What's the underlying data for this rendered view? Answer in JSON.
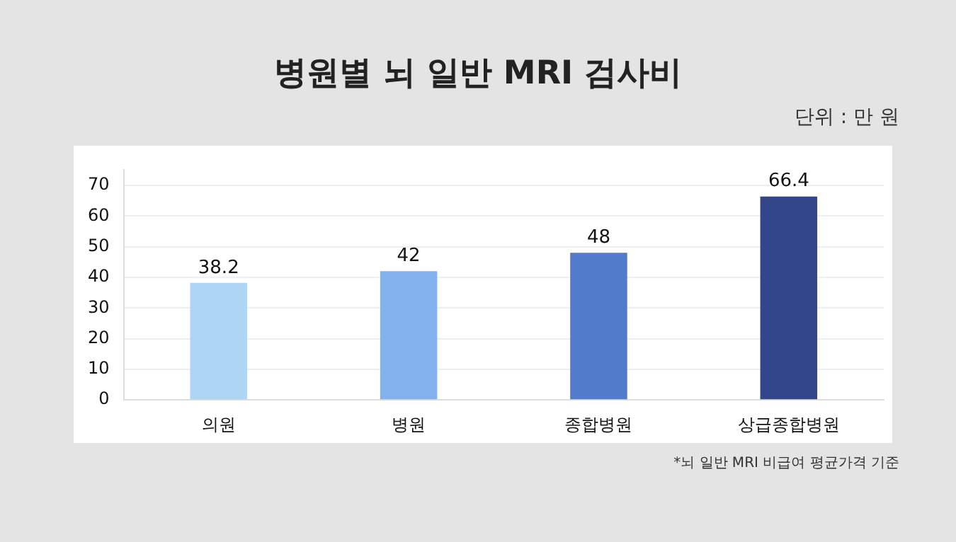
{
  "chart_data": {
    "type": "bar",
    "title": "병원별 뇌 일반 MRI 검사비",
    "annotations": [
      "단위 : 만 원",
      "*뇌 일반 MRI 비급여 평균가격 기준"
    ],
    "categories": [
      "의원",
      "병원",
      "종합병원",
      "상급종합병원"
    ],
    "values": [
      38.2,
      42,
      48,
      66.4
    ],
    "colors": [
      "#aed4f6",
      "#82b2ee",
      "#527ccb",
      "#33468a"
    ],
    "ylim": [
      0,
      75
    ],
    "yticks": [
      0,
      10,
      20,
      30,
      40,
      50,
      60,
      70
    ],
    "grid": "y",
    "data_labels": true
  }
}
